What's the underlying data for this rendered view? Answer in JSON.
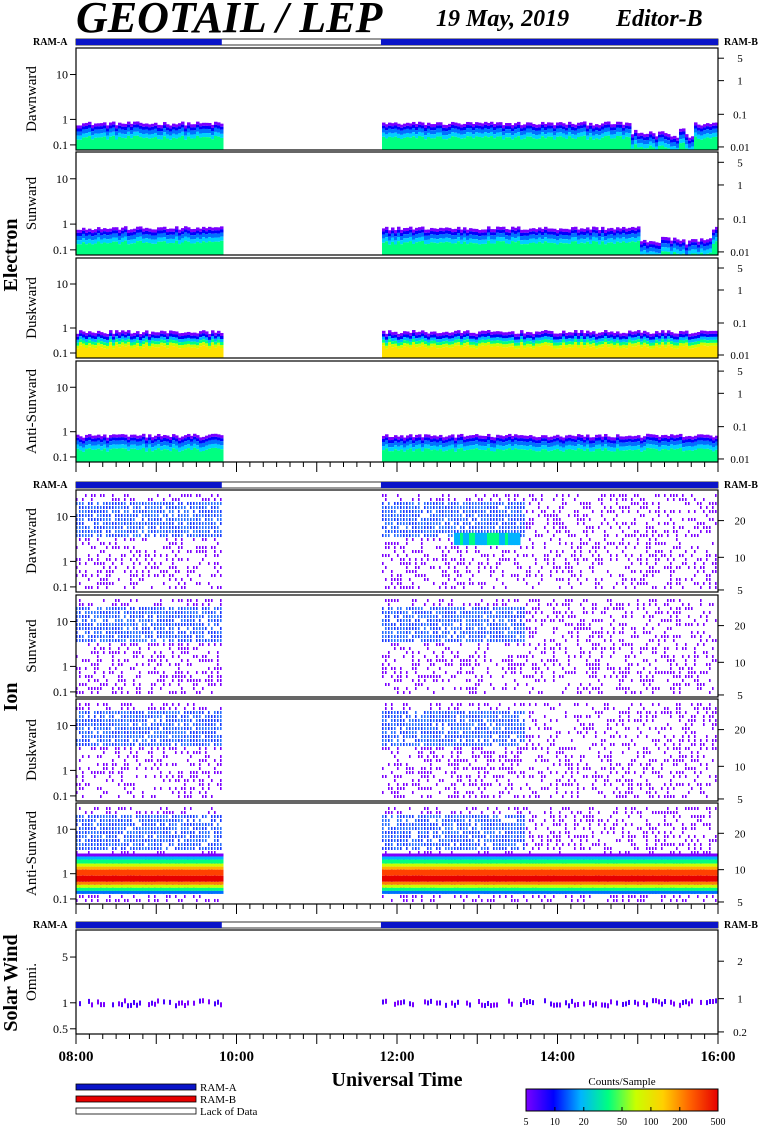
{
  "header": {
    "title": "GEOTAIL / LEP",
    "date": "19 May, 2019",
    "editor": "Editor-B"
  },
  "chart_data": {
    "type": "heatmap",
    "x_axis": {
      "label": "Universal Time",
      "range": [
        "08:00",
        "16:00"
      ],
      "major_ticks": [
        "08:00",
        "10:00",
        "12:00",
        "14:00",
        "16:00"
      ],
      "minor_tick_minutes": 10
    },
    "coverage": {
      "legend": [
        {
          "label": "RAM-A",
          "color": "#0a14c8"
        },
        {
          "label": "RAM-B",
          "color": "#e60000"
        },
        {
          "label": "Lack of Data",
          "color": "#ffffff"
        }
      ],
      "data_segments": [
        [
          "08:00",
          "09:49"
        ],
        [
          "11:48",
          "16:00"
        ]
      ],
      "gap": [
        "09:49",
        "11:48"
      ]
    },
    "colorbar": {
      "label": "Counts/Sample",
      "ticks": [
        "5",
        "10",
        "20",
        "50",
        "100",
        "200",
        "500"
      ],
      "min": 5,
      "max": 500,
      "scale": "log",
      "colors": [
        "#7a00ff",
        "#0000ff",
        "#00b4ff",
        "#00ff80",
        "#c8ff00",
        "#ffd000",
        "#ff6000",
        "#e60000"
      ]
    },
    "groups": [
      {
        "name": "Electron",
        "ram_left": "RAM-A",
        "ram_right": "RAM-B",
        "panels": [
          {
            "label": "Dawnward",
            "left_ticks": [
              "10",
              "1",
              "0.1"
            ],
            "right_ticks": [
              "5",
              "1",
              "0.1",
              "0.01"
            ]
          },
          {
            "label": "Sunward",
            "left_ticks": [
              "10",
              "1",
              "0.1"
            ],
            "right_ticks": [
              "5",
              "1",
              "0.1",
              "0.01"
            ]
          },
          {
            "label": "Duskward",
            "left_ticks": [
              "10",
              "1",
              "0.1"
            ],
            "right_ticks": [
              "5",
              "1",
              "0.1",
              "0.01"
            ]
          },
          {
            "label": "Anti-Sunward",
            "left_ticks": [
              "10",
              "1",
              "0.1"
            ],
            "right_ticks": [
              "5",
              "1",
              "0.1",
              "0.01"
            ]
          }
        ]
      },
      {
        "name": "Ion",
        "ram_left": "RAM-A",
        "ram_right": "RAM-B",
        "panels": [
          {
            "label": "Dawnward",
            "left_ticks": [
              "10",
              "1",
              "0.1"
            ],
            "right_ticks": [
              "20",
              "10",
              "5"
            ]
          },
          {
            "label": "Sunward",
            "left_ticks": [
              "10",
              "1",
              "0.1"
            ],
            "right_ticks": [
              "20",
              "10",
              "5"
            ]
          },
          {
            "label": "Duskward",
            "left_ticks": [
              "10",
              "1",
              "0.1"
            ],
            "right_ticks": [
              "20",
              "10",
              "5"
            ]
          },
          {
            "label": "Anti-Sunward",
            "left_ticks": [
              "10",
              "1",
              "0.1"
            ],
            "right_ticks": [
              "20",
              "10",
              "5"
            ]
          }
        ]
      },
      {
        "name": "Solar Wind",
        "ram_left": "RAM-A",
        "ram_right": "RAM-B",
        "panels": [
          {
            "label": "Omni.",
            "left_ticks": [
              "5",
              "1",
              "0.5"
            ],
            "right_ticks": [
              "2",
              "1",
              "0.2"
            ]
          }
        ]
      }
    ]
  }
}
